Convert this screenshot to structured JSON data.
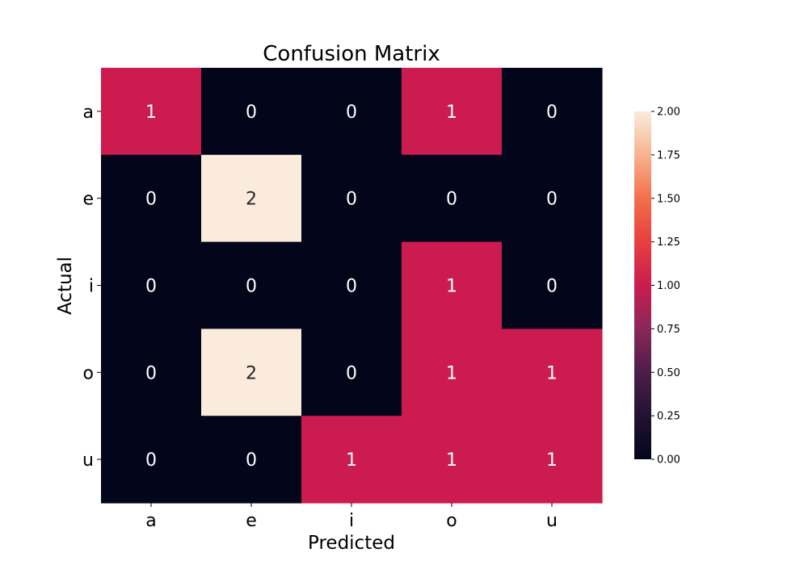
{
  "chart_data": {
    "type": "heatmap",
    "title": "Confusion Matrix",
    "xlabel": "Predicted",
    "ylabel": "Actual",
    "x_categories": [
      "a",
      "e",
      "i",
      "o",
      "u"
    ],
    "y_categories": [
      "a",
      "e",
      "i",
      "o",
      "u"
    ],
    "values": [
      [
        1,
        0,
        0,
        1,
        0
      ],
      [
        0,
        2,
        0,
        0,
        0
      ],
      [
        0,
        0,
        0,
        1,
        0
      ],
      [
        0,
        2,
        0,
        1,
        1
      ],
      [
        0,
        0,
        1,
        1,
        1
      ]
    ],
    "colorbar": {
      "range": [
        0,
        2
      ],
      "ticks": [
        "0.00",
        "0.25",
        "0.50",
        "0.75",
        "1.00",
        "1.25",
        "1.50",
        "1.75",
        "2.00"
      ],
      "colormap": "rocket",
      "color_low": "#03051a",
      "color_mid": "#cb1b4f",
      "color_high": "#faebdd"
    },
    "annotation_colors": {
      "on_dark": "#ffffff",
      "on_light": "#262626"
    },
    "grid": false
  }
}
